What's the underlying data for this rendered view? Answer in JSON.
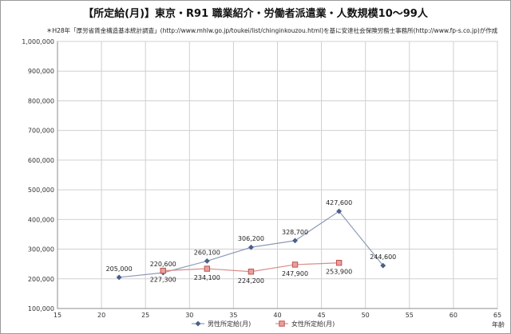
{
  "chart_data": {
    "type": "line",
    "title": "【所定給(月)】東京・R91 職業紹介・労働者派遣業・人数規模10～99人",
    "subtitle": "＊H28年「厚労省賃金構造基本統計調査」(http://www.mhlw.go.jp/toukei/list/chinginkouzou.html)を基に安達社会保険労務士事務所(http://www.fp-s.co.jp)が作成",
    "xlabel": "年齢",
    "ylabel": "",
    "xlim": [
      15,
      65
    ],
    "ylim": [
      100000,
      1000000
    ],
    "x_ticks": [
      "15",
      "20",
      "25",
      "30",
      "35",
      "40",
      "45",
      "50",
      "55",
      "60",
      "65"
    ],
    "y_ticks": [
      "100,000",
      "200,000",
      "300,000",
      "400,000",
      "500,000",
      "600,000",
      "700,000",
      "800,000",
      "900,000",
      "1,000,000"
    ],
    "grid": true,
    "legend_position": "bottom",
    "series": [
      {
        "name": "男性所定給(月)",
        "color": "#4a5f8a",
        "marker": "diamond",
        "points": [
          {
            "x": 22,
            "y": 205000,
            "label": "205,000"
          },
          {
            "x": 27,
            "y": 220600,
            "label": "220,600"
          },
          {
            "x": 32,
            "y": 260100,
            "label": "260,100"
          },
          {
            "x": 37,
            "y": 306200,
            "label": "306,200"
          },
          {
            "x": 42,
            "y": 328700,
            "label": "328,700"
          },
          {
            "x": 47,
            "y": 427600,
            "label": "427,600"
          },
          {
            "x": 52,
            "y": 244600,
            "label": "244,600"
          }
        ]
      },
      {
        "name": "女性所定給(月)",
        "color": "#c0504d",
        "marker": "square",
        "points": [
          {
            "x": 27,
            "y": 227300,
            "label": "227,300"
          },
          {
            "x": 32,
            "y": 234100,
            "label": "234,100"
          },
          {
            "x": 37,
            "y": 224200,
            "label": "224,200"
          },
          {
            "x": 42,
            "y": 247900,
            "label": "247,900"
          },
          {
            "x": 47,
            "y": 253900,
            "label": "253,900"
          }
        ]
      }
    ]
  }
}
